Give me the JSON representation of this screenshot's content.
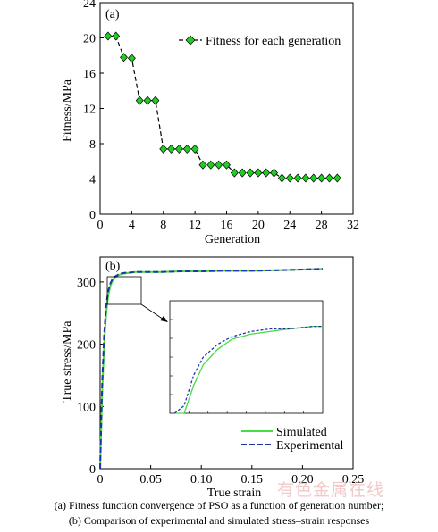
{
  "chart_data": [
    {
      "type": "line",
      "panel_label": "(a)",
      "xlabel": "Generation",
      "ylabel": "Fitness/MPa",
      "xlim": [
        0,
        32
      ],
      "ylim": [
        0,
        24
      ],
      "xticks": [
        "0",
        "4",
        "8",
        "12",
        "16",
        "20",
        "24",
        "28",
        "32"
      ],
      "yticks": [
        "0",
        "4",
        "8",
        "12",
        "16",
        "20",
        "24"
      ],
      "grid": false,
      "legend_position": "top-right",
      "series": [
        {
          "name": "Fitness for each generation",
          "color": "#22cc22",
          "marker": "diamond",
          "line_style": "dashed",
          "x": [
            1,
            2,
            3,
            4,
            5,
            6,
            7,
            8,
            9,
            10,
            11,
            12,
            13,
            14,
            15,
            16,
            17,
            18,
            19,
            20,
            21,
            22,
            23,
            24,
            25,
            26,
            27,
            28,
            29,
            30
          ],
          "y": [
            20.2,
            20.2,
            17.8,
            17.7,
            12.9,
            12.9,
            12.9,
            7.4,
            7.4,
            7.4,
            7.4,
            7.4,
            5.6,
            5.6,
            5.6,
            5.6,
            4.7,
            4.7,
            4.7,
            4.7,
            4.7,
            4.7,
            4.1,
            4.1,
            4.1,
            4.1,
            4.1,
            4.1,
            4.1,
            4.1
          ]
        }
      ]
    },
    {
      "type": "line",
      "panel_label": "(b)",
      "xlabel": "True strain",
      "ylabel": "True stress/MPa",
      "xlim": [
        0,
        0.25
      ],
      "ylim": [
        0,
        340
      ],
      "xticks": [
        "0",
        "0.05",
        "0.10",
        "0.15",
        "0.20",
        "0.25"
      ],
      "yticks": [
        "0",
        "100",
        "200",
        "300"
      ],
      "grid": false,
      "legend_position": "bottom-right",
      "inset": "zoom of the yield region, strain 0.005–0.037",
      "series": [
        {
          "name": "Simulated",
          "color": "#44dd44",
          "line_style": "solid",
          "x": [
            0,
            0.002,
            0.004,
            0.006,
            0.008,
            0.01,
            0.012,
            0.015,
            0.018,
            0.022,
            0.026,
            0.03,
            0.035,
            0.04,
            0.05,
            0.06,
            0.08,
            0.1,
            0.12,
            0.15,
            0.18,
            0.2,
            0.22
          ],
          "y": [
            0,
            120,
            200,
            250,
            278,
            293,
            301,
            307,
            311,
            313,
            314,
            315,
            316,
            316,
            316,
            316,
            317,
            317,
            318,
            318,
            319,
            320,
            321
          ]
        },
        {
          "name": "Experimental",
          "color": "#2233aa",
          "line_style": "dashed",
          "x": [
            0,
            0.002,
            0.004,
            0.006,
            0.008,
            0.01,
            0.012,
            0.015,
            0.018,
            0.022,
            0.026,
            0.03,
            0.035,
            0.04,
            0.05,
            0.06,
            0.08,
            0.1,
            0.12,
            0.15,
            0.18,
            0.2,
            0.22
          ],
          "y": [
            0,
            135,
            215,
            262,
            285,
            297,
            304,
            309,
            312,
            314,
            315,
            315,
            316,
            316,
            316,
            316,
            317,
            317,
            318,
            318,
            319,
            320,
            321
          ]
        }
      ]
    }
  ],
  "caption": {
    "line1": "(a) Fitness function convergence of PSO as  a  function  of  generation  number;",
    "line2": "(b)  Comparison  of experimental and simulated stress–strain responses"
  },
  "watermark": "有色金属在线"
}
